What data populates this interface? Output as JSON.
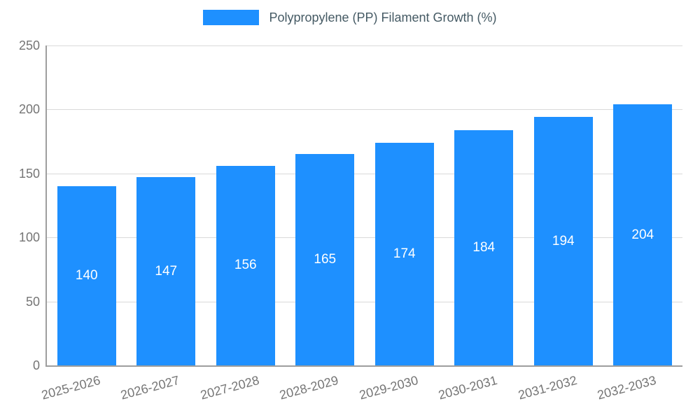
{
  "chart_data": {
    "type": "bar",
    "title": "Polypropylene (PP) Filament Growth (%)",
    "categories": [
      "2025-2026",
      "2026-2027",
      "2027-2028",
      "2028-2029",
      "2029-2030",
      "2030-2031",
      "2031-2032",
      "2032-2033"
    ],
    "values": [
      140,
      147,
      156,
      165,
      174,
      184,
      194,
      204
    ],
    "xlabel": "",
    "ylabel": "",
    "ylim": [
      0,
      250
    ],
    "ytick_step": 50,
    "ytick_labels": [
      "0",
      "50",
      "100",
      "150",
      "200",
      "250"
    ],
    "grid": true,
    "legend_position": "top",
    "bar_color": "#1E90FF",
    "value_label_color": "#ffffff",
    "axis_color": "#9e9e9e",
    "grid_color": "#d9d9d9",
    "tick_text_color": "#757575",
    "title_text_color": "#455a64"
  }
}
